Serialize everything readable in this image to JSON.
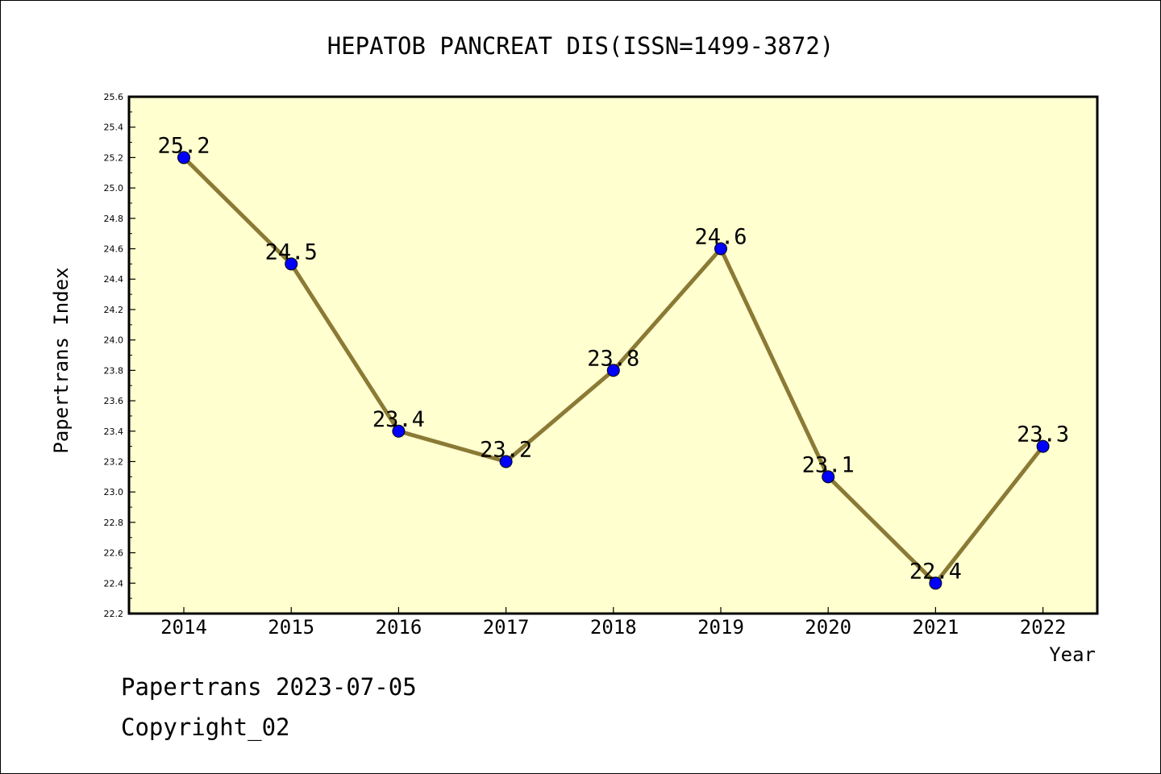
{
  "chart_data": {
    "type": "line",
    "title": "HEPATOB PANCREAT DIS(ISSN=1499-3872)",
    "xlabel": "Year",
    "ylabel": "Papertrans Index",
    "categories": [
      "2014",
      "2015",
      "2016",
      "2017",
      "2018",
      "2019",
      "2020",
      "2021",
      "2022"
    ],
    "series": [
      {
        "values": [
          25.2,
          24.5,
          23.4,
          23.2,
          23.8,
          24.6,
          23.1,
          22.4,
          23.3
        ]
      }
    ],
    "data_labels": [
      "25.2",
      "24.5",
      "23.4",
      "23.2",
      "23.8",
      "24.6",
      "23.1",
      "22.4",
      "23.3"
    ],
    "ylim": [
      22.2,
      25.6
    ],
    "yticks": [
      "22.2",
      "22.4",
      "22.6",
      "22.8",
      "23.0",
      "23.2",
      "23.4",
      "23.6",
      "23.8",
      "24.0",
      "24.2",
      "24.4",
      "24.6",
      "24.8",
      "25.0",
      "25.2",
      "25.4",
      "25.6"
    ],
    "grid": false,
    "colors": {
      "plot_background": "#ffffd0",
      "line": "#8b7a35",
      "marker": "#0000ff"
    }
  },
  "footer": {
    "line1": "Papertrans 2023-07-05",
    "line2": "Copyright_02"
  }
}
